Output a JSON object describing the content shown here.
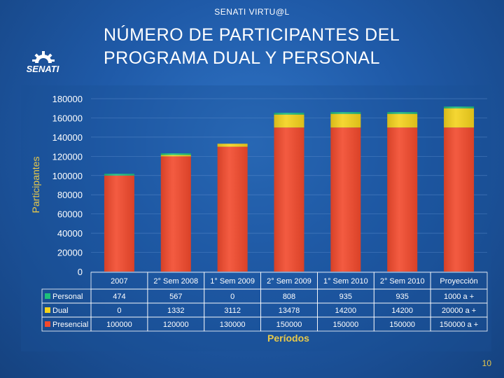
{
  "header": {
    "label": "SENATI VIRTU@L"
  },
  "logo": {
    "text": "SENATI"
  },
  "title": {
    "line1": "NÚMERO DE PARTICIPANTES DEL",
    "line2": "PROGRAMA DUAL Y PERSONAL"
  },
  "page_number": "10",
  "colors": {
    "personal": "#1ec07a",
    "dual": "#f4d21c",
    "presencial": "#f2492c",
    "axis_label": "#e8c94a"
  },
  "chart_data": {
    "type": "bar",
    "stacked": true,
    "title": "",
    "ylabel": "Participantes",
    "xlabel": "Períodos",
    "ylim": [
      0,
      180000
    ],
    "yticks": [
      "0",
      "20000",
      "40000",
      "60000",
      "80000",
      "100000",
      "120000",
      "140000",
      "160000",
      "180000"
    ],
    "grid": true,
    "categories": [
      "2007",
      "2° Sem 2008",
      "1° Sem 2009",
      "2° Sem 2009",
      "1° Sem 2010",
      "2° Sem 2010",
      "Proyección"
    ],
    "series": [
      {
        "name": "Personal",
        "values": [
          474,
          567,
          0,
          808,
          935,
          935,
          1000
        ],
        "labels": [
          "474",
          "567",
          "0",
          "808",
          "935",
          "935",
          "1000 a +"
        ]
      },
      {
        "name": "Dual",
        "values": [
          0,
          1332,
          3112,
          13478,
          14200,
          14200,
          20000
        ],
        "labels": [
          "0",
          "1332",
          "3112",
          "13478",
          "14200",
          "14200",
          "20000 a +"
        ]
      },
      {
        "name": "Presencial",
        "values": [
          100000,
          120000,
          130000,
          150000,
          150000,
          150000,
          150000
        ],
        "labels": [
          "100000",
          "120000",
          "130000",
          "150000",
          "150000",
          "150000",
          "150000 a +"
        ]
      }
    ]
  }
}
